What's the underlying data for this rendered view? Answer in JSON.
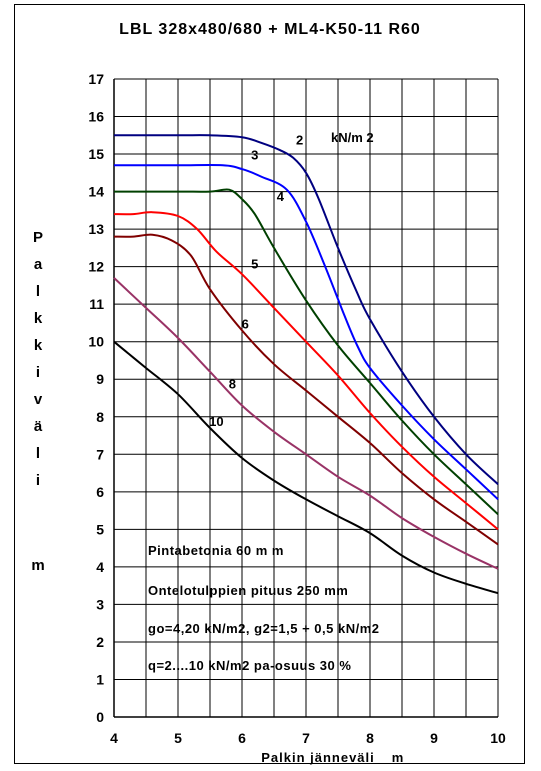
{
  "chart_data": {
    "type": "line",
    "title": "LBL 328x480/680 + ML4-K50-11 R60",
    "xlabel": "Palkin jänneväli",
    "xunit": "m",
    "ylabel_letters": [
      "P",
      "a",
      "l",
      "k",
      "k",
      "i",
      "v",
      "ä",
      "l",
      "i"
    ],
    "yunit": "m",
    "xlim": [
      4,
      10
    ],
    "ylim": [
      0,
      17
    ],
    "xticks": [
      4,
      5,
      6,
      7,
      8,
      9,
      10
    ],
    "yticks": [
      0,
      1,
      2,
      3,
      4,
      5,
      6,
      7,
      8,
      9,
      10,
      11,
      12,
      13,
      14,
      15,
      16,
      17
    ],
    "xgrid_step": 0.5,
    "grid": true,
    "legend_unit": "kN/m2",
    "series": [
      {
        "name": "2",
        "color": "#000080",
        "x": [
          4,
          5,
          5.5,
          6,
          6.3,
          6.6,
          6.8,
          7,
          7.2,
          7.5,
          7.8,
          8,
          8.5,
          9,
          9.5,
          10
        ],
        "y": [
          15.5,
          15.5,
          15.5,
          15.45,
          15.3,
          15.1,
          14.9,
          14.5,
          13.8,
          12.5,
          11.3,
          10.6,
          9.2,
          8,
          7,
          6.2
        ]
      },
      {
        "name": "3",
        "color": "#0000FF",
        "x": [
          4,
          5,
          5.7,
          6,
          6.3,
          6.7,
          7,
          7.3,
          7.6,
          7.8,
          8,
          8.5,
          9,
          9.5,
          10
        ],
        "y": [
          14.7,
          14.7,
          14.7,
          14.6,
          14.4,
          14.05,
          13.2,
          12,
          10.7,
          9.9,
          9.3,
          8.3,
          7.4,
          6.6,
          5.8
        ]
      },
      {
        "name": "4",
        "color": "#004000",
        "x": [
          4,
          5,
          5.5,
          5.8,
          6,
          6.2,
          6.5,
          7,
          7.5,
          8,
          8.5,
          9,
          9.5,
          10
        ],
        "y": [
          14,
          14,
          14,
          14.05,
          13.8,
          13.4,
          12.5,
          11.1,
          9.9,
          8.9,
          7.9,
          7,
          6.2,
          5.4
        ]
      },
      {
        "name": "5",
        "color": "#FF0000",
        "x": [
          4,
          4.3,
          4.6,
          5,
          5.3,
          5.6,
          6,
          6.5,
          7,
          7.5,
          8,
          8.5,
          9,
          9.5,
          10
        ],
        "y": [
          13.4,
          13.4,
          13.45,
          13.35,
          13,
          12.4,
          11.8,
          10.9,
          10,
          9.1,
          8.1,
          7.2,
          6.4,
          5.7,
          5
        ]
      },
      {
        "name": "6",
        "color": "#800000",
        "x": [
          4,
          4.3,
          4.6,
          4.9,
          5.2,
          5.5,
          6,
          6.5,
          7,
          7.5,
          8,
          8.5,
          9,
          9.5,
          10
        ],
        "y": [
          12.8,
          12.8,
          12.85,
          12.7,
          12.3,
          11.4,
          10.3,
          9.4,
          8.7,
          8,
          7.3,
          6.5,
          5.8,
          5.2,
          4.6
        ]
      },
      {
        "name": "8",
        "color": "#993366",
        "x": [
          4,
          4.5,
          5,
          5.5,
          6,
          6.5,
          7,
          7.5,
          8,
          8.5,
          9,
          9.5,
          10
        ],
        "y": [
          11.7,
          10.9,
          10.1,
          9.2,
          8.3,
          7.6,
          7,
          6.4,
          5.9,
          5.3,
          4.8,
          4.35,
          3.95
        ]
      },
      {
        "name": "10",
        "color": "#000000",
        "x": [
          4,
          4.5,
          5,
          5.5,
          6,
          6.5,
          7,
          7.5,
          8,
          8.5,
          9,
          9.5,
          10
        ],
        "y": [
          10,
          9.3,
          8.6,
          7.7,
          6.9,
          6.3,
          5.8,
          5.35,
          4.9,
          4.3,
          3.85,
          3.55,
          3.3
        ]
      }
    ],
    "series_label_suffix": "kN/m 2",
    "annotations": [
      "Pintabetonia 60 m m",
      "Ontelotulppien pituus 250 mm",
      "go=4,20 kN/m2, g2=1,5 + 0,5 kN/m2",
      "q=2....10 kN/m2 pa-osuus 30 %"
    ]
  }
}
